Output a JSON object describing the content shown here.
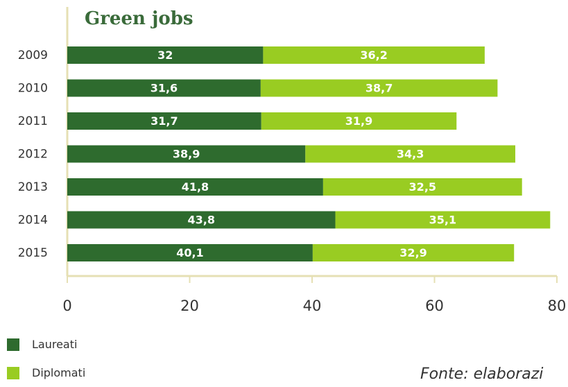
{
  "chart_data": {
    "type": "bar",
    "orientation": "horizontal",
    "stacked": true,
    "title": "Green jobs",
    "categories": [
      "2009",
      "2010",
      "2011",
      "2012",
      "2013",
      "2014",
      "2015"
    ],
    "series": [
      {
        "name": "Laureati",
        "color": "#2e6b2e",
        "values": [
          32,
          31.6,
          31.7,
          38.9,
          41.8,
          43.8,
          40.1
        ],
        "labels": [
          "32",
          "31,6",
          "31,7",
          "38,9",
          "41,8",
          "43,8",
          "40,1"
        ]
      },
      {
        "name": "Diplomati",
        "color": "#99cc22",
        "values": [
          36.2,
          38.7,
          31.9,
          34.3,
          32.5,
          35.1,
          32.9
        ],
        "labels": [
          "36,2",
          "38,7",
          "31,9",
          "34,3",
          "32,5",
          "35,1",
          "32,9"
        ]
      }
    ],
    "x_ticks": [
      "0",
      "20",
      "40",
      "60",
      "80"
    ],
    "xlim": [
      0,
      80
    ],
    "grid": false,
    "legend_position": "bottom-left"
  },
  "legend": {
    "items": [
      {
        "label": "Laureati",
        "color": "#2e6b2e"
      },
      {
        "label": "Diplomati",
        "color": "#99cc22"
      }
    ]
  },
  "source": "Fonte: elaborazi",
  "colors": {
    "axis": "#e6e0b4",
    "title": "#3a6b3a"
  }
}
